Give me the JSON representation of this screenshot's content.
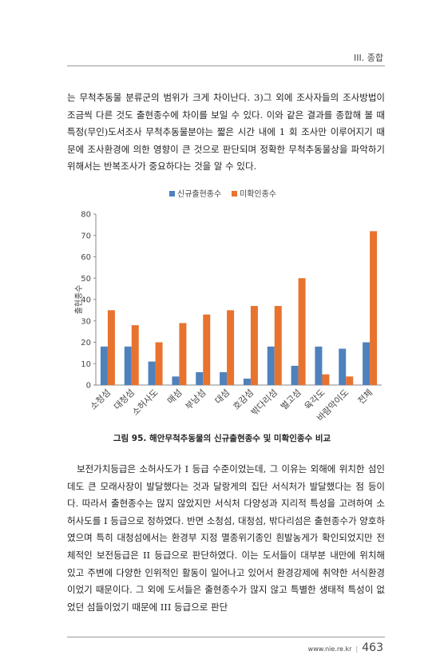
{
  "header": {
    "section": "III. 종합"
  },
  "paragraphs": [
    "는 무척추동물 분류군의 범위가 크게 차이난다. 3)그 외에 조사자들의 조사방법이 조금씩 다른 것도 출현종수에 차이를 보일 수 있다. 이와 같은 결과를 종합해 볼 때 특정(무인)도서조사 무척추동물분야는 짧은 시간 내에 1 회 조사만 이루어지기 때문에 조사환경에 의한 영향이 큰 것으로 판단되며 정확한 무척추동물상을 파악하기 위해서는 반복조사가 중요하다는 것을 알 수 있다.",
    "보전가치등급은 소허사도가 I 등급 수준이었는데, 그 이유는 외해에 위치한 섬인데도 큰 모래사장이 발달했다는 것과 달랑게의 집단 서식처가 발달했다는 점 등이다. 따라서 출현종수는 많지 않았지만 서식처 다양성과 지리적 특성을 고려하여 소허사도를 I 등급으로 정하였다. 반면 소청섬, 대청섬, 밖다리섬은 출현종수가 양호하였으며 특히 대청섬에서는 환경부 지정 멸종위기종인 흰발농게가 확인되었지만 전체적인 보전등급은 II 등급으로 판단하였다. 이는 도서들이 대부분 내만에 위치해 있고 주변에 다양한 인위적인 활동이 일어나고 있어서 환경강제에 취약한 서식환경이었기 때문이다. 그 외에 도서들은 출현종수가 많지 않고 특별한 생태적 특성이 없었던 섬들이었기 때문에 III 등급으로 판단"
  ],
  "chart_data": {
    "type": "bar",
    "title": "그림 95. 해안무척추동물의 신규출현종수 및 미확인종수 비교",
    "y_label": "출현종수",
    "categories": [
      "소청섬",
      "대청섬",
      "소허사도",
      "매섬",
      "부남섬",
      "대섬",
      "호감섬",
      "밖다리섬",
      "벌고섬",
      "육각도",
      "바람막이도",
      "전체"
    ],
    "series": [
      {
        "name": "신규출현종수",
        "color": "#4f81bd",
        "values": [
          18,
          18,
          11,
          4,
          6,
          6,
          3,
          18,
          9,
          18,
          17,
          20
        ]
      },
      {
        "name": "미확인종수",
        "color": "#e8732f",
        "values": [
          35,
          28,
          20,
          29,
          33,
          35,
          37,
          37,
          50,
          5,
          4,
          72
        ]
      }
    ],
    "ylim": [
      0,
      80
    ],
    "yticks": [
      0,
      10,
      20,
      30,
      40,
      50,
      60,
      70,
      80
    ],
    "grid": false,
    "legend": "top"
  },
  "footer": {
    "url": "www.nie.re.kr",
    "page": "463"
  }
}
